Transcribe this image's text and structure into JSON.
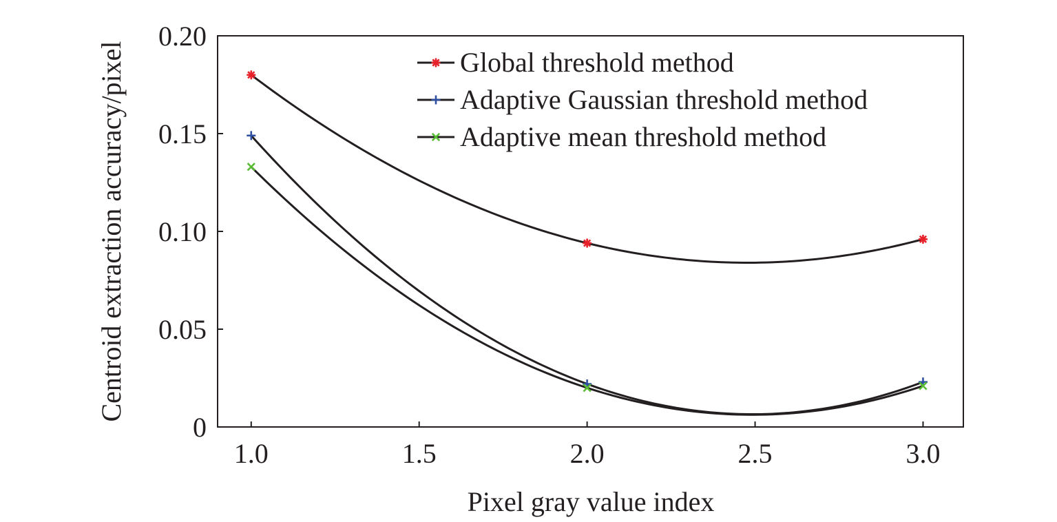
{
  "chart_data": {
    "type": "line",
    "title": "",
    "xlabel": "Pixel gray value index",
    "ylabel": "Centroid extraction accuracy/pixel",
    "xlim": [
      0.9,
      3.12
    ],
    "ylim": [
      0,
      0.2
    ],
    "x_ticks": [
      1.0,
      1.5,
      2.0,
      2.5,
      3.0
    ],
    "x_tick_labels": [
      "1.0",
      "1.5",
      "2.0",
      "2.5",
      "3.0"
    ],
    "y_ticks": [
      0,
      0.05,
      0.1,
      0.15,
      0.2
    ],
    "y_tick_labels": [
      "0",
      "0.05",
      "0.10",
      "0.15",
      "0.20"
    ],
    "grid": false,
    "legend_position": "top-right",
    "line_color": "#231f20",
    "series": [
      {
        "name": "Global threshold method",
        "marker": "asterisk",
        "color": "#e8202a",
        "x": [
          1.0,
          2.0,
          3.0
        ],
        "values": [
          0.18,
          0.094,
          0.096
        ]
      },
      {
        "name": "Adaptive Gaussian threshold method",
        "marker": "plus",
        "color": "#2f4fa3",
        "x": [
          1.0,
          2.0,
          3.0
        ],
        "values": [
          0.149,
          0.022,
          0.023
        ]
      },
      {
        "name": "Adaptive mean threshold method",
        "marker": "cross",
        "color": "#5bbd35",
        "x": [
          1.0,
          2.0,
          3.0
        ],
        "values": [
          0.133,
          0.02,
          0.021
        ]
      }
    ]
  }
}
